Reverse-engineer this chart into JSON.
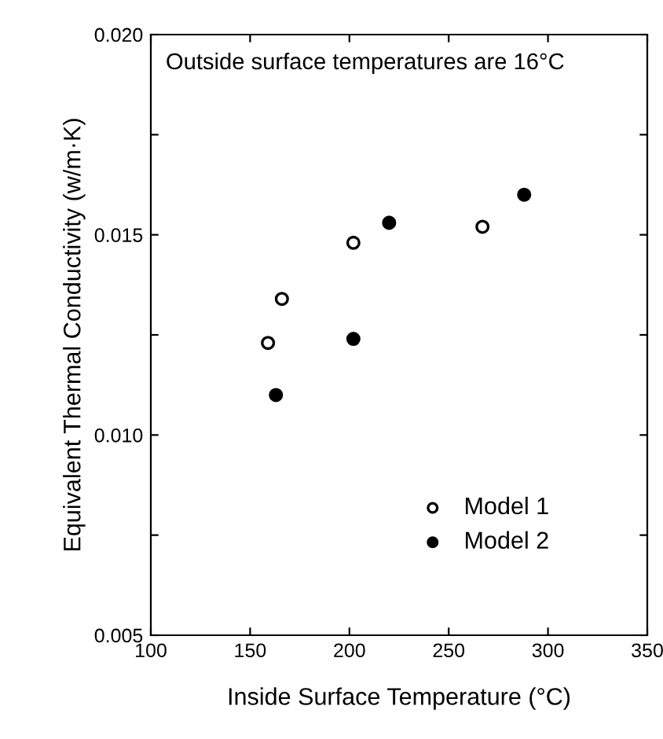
{
  "chart_data": {
    "type": "scatter",
    "xlabel": "Inside Surface Temperature (°C)",
    "ylabel": "Equivalent Thermal Conductivity (w/m·K)",
    "annotations": [
      "Outside surface temperatures are 16°C"
    ],
    "series": [
      {
        "name": "Model 1",
        "color": "#000000",
        "marker": "open circle",
        "x": [
          159,
          166,
          202,
          267
        ],
        "values": [
          0.0123,
          0.0134,
          0.0148,
          0.0152
        ]
      },
      {
        "name": "Model 2",
        "color": "#000000",
        "marker": "circle",
        "x": [
          163,
          202,
          220,
          288
        ],
        "values": [
          0.011,
          0.0124,
          0.0153,
          0.016
        ]
      }
    ],
    "xlim": [
      100,
      350
    ],
    "xticks": [
      100,
      150,
      200,
      250,
      300,
      350
    ],
    "ylim": [
      0.005,
      0.02
    ],
    "yticks": [
      {
        "value": 0.005,
        "label": "0.005"
      },
      {
        "value": 0.0075,
        "label": null
      },
      {
        "value": 0.01,
        "label": "0.010"
      },
      {
        "value": 0.0125,
        "label": null
      },
      {
        "value": 0.015,
        "label": "0.015"
      },
      {
        "value": 0.0175,
        "label": null
      },
      {
        "value": 0.02,
        "label": "0.020"
      }
    ],
    "legend": "bottom right",
    "grid": false
  }
}
